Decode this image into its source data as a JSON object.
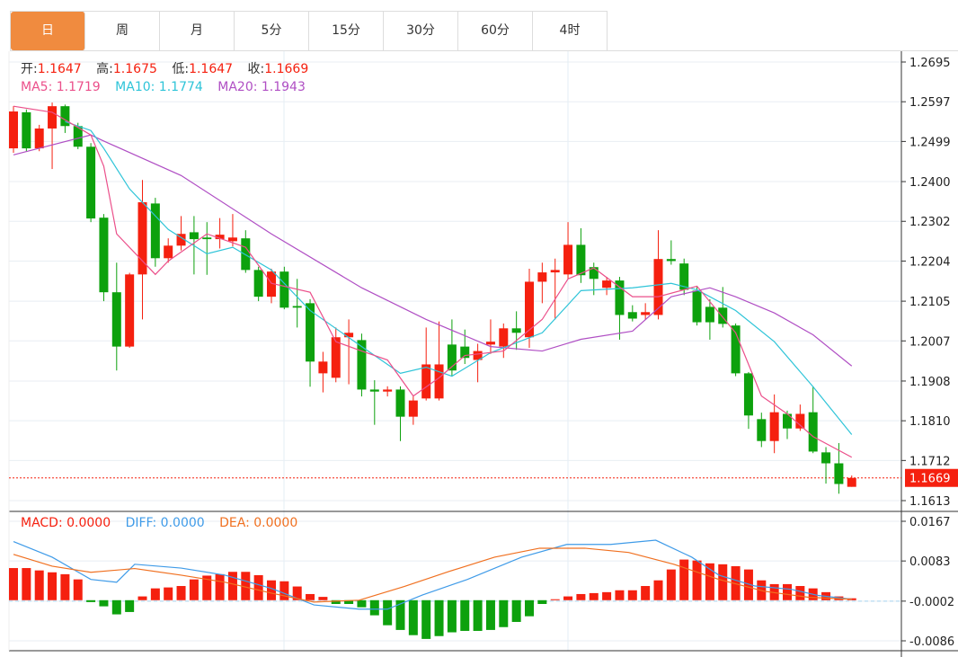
{
  "tabs": [
    {
      "label": "日",
      "active": true
    },
    {
      "label": "周"
    },
    {
      "label": "月"
    },
    {
      "label": "5分"
    },
    {
      "label": "15分"
    },
    {
      "label": "30分"
    },
    {
      "label": "60分"
    },
    {
      "label": "4时"
    }
  ],
  "ohlc_legend": {
    "open_label": "开:",
    "open": "1.1647",
    "high_label": "高:",
    "high": "1.1675",
    "low_label": "低:",
    "low": "1.1647",
    "close_label": "收:",
    "close": "1.1669"
  },
  "ma_legend": {
    "ma5": "MA5: 1.1719",
    "ma10": "MA10: 1.1774",
    "ma20": "MA20: 1.1943"
  },
  "macd_legend": {
    "macd": "MACD: 0.0000",
    "diff": "DIFF: 0.0000",
    "dea": "DEA: 0.0000"
  },
  "colors": {
    "up": "#f5200f",
    "down": "#0da10d",
    "ma5": "#eb4f8a",
    "ma10": "#2ec4d8",
    "ma20": "#b04fc4",
    "diff": "#3f9be8",
    "dea": "#f07020",
    "tab_active": "#f08b3f"
  },
  "chart_data": [
    {
      "type": "candlestick",
      "title": "",
      "y_ticks": [
        "1.2695",
        "1.2597",
        "1.2499",
        "1.2400",
        "1.2302",
        "1.2204",
        "1.2105",
        "1.2007",
        "1.1908",
        "1.1810",
        "1.1712",
        "1.1613"
      ],
      "ylim": [
        1.1613,
        1.2695
      ],
      "current_price": "1.1669",
      "ohlc": [
        [
          1.2482,
          1.2586,
          1.2471,
          1.2573
        ],
        [
          1.2571,
          1.2578,
          1.2475,
          1.2482
        ],
        [
          1.2482,
          1.254,
          1.2475,
          1.2531
        ],
        [
          1.2531,
          1.2595,
          1.2431,
          1.2586
        ],
        [
          1.2586,
          1.259,
          1.252,
          1.2537
        ],
        [
          1.2537,
          1.2545,
          1.248,
          1.2486
        ],
        [
          1.2486,
          1.2495,
          1.23,
          1.2309
        ],
        [
          1.2311,
          1.232,
          1.2105,
          1.2127
        ],
        [
          1.2127,
          1.22,
          1.1934,
          1.1993
        ],
        [
          1.1993,
          1.2175,
          1.199,
          1.2171
        ],
        [
          1.2171,
          1.2404,
          1.206,
          1.2349
        ],
        [
          1.2346,
          1.236,
          1.219,
          1.2211
        ],
        [
          1.2211,
          1.226,
          1.22,
          1.2242
        ],
        [
          1.2242,
          1.2315,
          1.223,
          1.2271
        ],
        [
          1.2275,
          1.2315,
          1.2171,
          1.2258
        ],
        [
          1.2262,
          1.23,
          1.217,
          1.2258
        ],
        [
          1.2258,
          1.231,
          1.2235,
          1.2269
        ],
        [
          1.2253,
          1.232,
          1.224,
          1.2262
        ],
        [
          1.226,
          1.228,
          1.2175,
          1.2182
        ],
        [
          1.2182,
          1.219,
          1.2105,
          1.2116
        ],
        [
          1.2116,
          1.2185,
          1.21,
          1.2178
        ],
        [
          1.2178,
          1.219,
          1.2085,
          1.2089
        ],
        [
          1.2093,
          1.216,
          1.204,
          1.2089
        ],
        [
          1.21,
          1.211,
          1.1894,
          1.1956
        ],
        [
          1.1927,
          1.198,
          1.188,
          1.1956
        ],
        [
          1.1916,
          1.204,
          1.1905,
          1.2016
        ],
        [
          1.2016,
          1.206,
          1.19,
          1.2027
        ],
        [
          1.2009,
          1.2025,
          1.187,
          1.1887
        ],
        [
          1.1887,
          1.191,
          1.18,
          1.1882
        ],
        [
          1.1882,
          1.1895,
          1.187,
          1.1887
        ],
        [
          1.1887,
          1.1895,
          1.176,
          1.182
        ],
        [
          1.182,
          1.187,
          1.18,
          1.186
        ],
        [
          1.1865,
          1.204,
          1.186,
          1.1949
        ],
        [
          1.1865,
          1.2055,
          1.186,
          1.1949
        ],
        [
          1.1998,
          1.206,
          1.192,
          1.1934
        ],
        [
          1.1993,
          1.2035,
          1.195,
          1.1965
        ],
        [
          1.196,
          1.2,
          1.1905,
          1.1982
        ],
        [
          1.1998,
          1.206,
          1.1975,
          1.2005
        ],
        [
          1.1993,
          1.205,
          1.1965,
          1.2038
        ],
        [
          1.2038,
          1.208,
          1.1985,
          1.2027
        ],
        [
          1.2016,
          1.2185,
          1.199,
          1.2153
        ],
        [
          1.2153,
          1.22,
          1.21,
          1.2176
        ],
        [
          1.2176,
          1.221,
          1.206,
          1.2182
        ],
        [
          1.2171,
          1.23,
          1.216,
          1.2244
        ],
        [
          1.2244,
          1.2285,
          1.215,
          1.2169
        ],
        [
          1.2189,
          1.22,
          1.212,
          1.216
        ],
        [
          1.2138,
          1.2165,
          1.212,
          1.2156
        ],
        [
          1.2156,
          1.2165,
          1.201,
          1.2071
        ],
        [
          1.2078,
          1.2095,
          1.2055,
          1.2062
        ],
        [
          1.2071,
          1.21,
          1.206,
          1.2078
        ],
        [
          1.2071,
          1.228,
          1.206,
          1.2209
        ],
        [
          1.2209,
          1.2255,
          1.2195,
          1.2204
        ],
        [
          1.2198,
          1.221,
          1.212,
          1.2133
        ],
        [
          1.2131,
          1.214,
          1.2045,
          1.2053
        ],
        [
          1.2091,
          1.211,
          1.201,
          1.2053
        ],
        [
          1.2089,
          1.214,
          1.204,
          1.2049
        ],
        [
          1.2045,
          1.205,
          1.192,
          1.1927
        ],
        [
          1.1927,
          1.193,
          1.179,
          1.1823
        ],
        [
          1.1814,
          1.183,
          1.1745,
          1.176
        ],
        [
          1.176,
          1.1875,
          1.173,
          1.1831
        ],
        [
          1.1827,
          1.1835,
          1.1765,
          1.1791
        ],
        [
          1.1791,
          1.185,
          1.1785,
          1.1827
        ],
        [
          1.1831,
          1.1895,
          1.173,
          1.1734
        ],
        [
          1.1732,
          1.1745,
          1.1655,
          1.1705
        ],
        [
          1.1705,
          1.1755,
          1.163,
          1.1654
        ],
        [
          1.1647,
          1.1675,
          1.1647,
          1.1669
        ]
      ],
      "ma5": [
        [
          0,
          1.2586
        ],
        [
          3,
          1.2571
        ],
        [
          6,
          1.2515
        ],
        [
          7,
          1.2438
        ],
        [
          8,
          1.2271
        ],
        [
          11,
          1.2171
        ],
        [
          12,
          1.2204
        ],
        [
          15,
          1.2271
        ],
        [
          18,
          1.2238
        ],
        [
          20,
          1.2149
        ],
        [
          23,
          1.2127
        ],
        [
          25,
          1.2005
        ],
        [
          27,
          1.1982
        ],
        [
          29,
          1.196
        ],
        [
          31,
          1.1871
        ],
        [
          33,
          1.1916
        ],
        [
          35,
          1.1971
        ],
        [
          38,
          1.1982
        ],
        [
          41,
          1.206
        ],
        [
          43,
          1.216
        ],
        [
          45,
          1.2187
        ],
        [
          48,
          1.2116
        ],
        [
          50,
          1.2116
        ],
        [
          53,
          1.2142
        ],
        [
          56,
          1.2027
        ],
        [
          58,
          1.1871
        ],
        [
          60,
          1.1827
        ],
        [
          62,
          1.1771
        ],
        [
          65,
          1.172
        ]
      ],
      "ma10": [
        [
          4,
          1.2548
        ],
        [
          6,
          1.2526
        ],
        [
          7,
          1.2482
        ],
        [
          9,
          1.2382
        ],
        [
          12,
          1.2282
        ],
        [
          15,
          1.2222
        ],
        [
          17,
          1.2238
        ],
        [
          20,
          1.2182
        ],
        [
          23,
          1.2082
        ],
        [
          27,
          1.1993
        ],
        [
          30,
          1.1927
        ],
        [
          32,
          1.1942
        ],
        [
          34,
          1.192
        ],
        [
          37,
          1.1978
        ],
        [
          41,
          1.2027
        ],
        [
          44,
          1.2131
        ],
        [
          48,
          1.2138
        ],
        [
          51,
          1.2149
        ],
        [
          53,
          1.2133
        ],
        [
          56,
          1.2082
        ],
        [
          59,
          1.2005
        ],
        [
          62,
          1.1894
        ],
        [
          65,
          1.1776
        ]
      ],
      "ma20": [
        [
          0,
          1.2466
        ],
        [
          6,
          1.2515
        ],
        [
          7,
          1.25
        ],
        [
          13,
          1.2415
        ],
        [
          20,
          1.2271
        ],
        [
          27,
          1.2138
        ],
        [
          32,
          1.206
        ],
        [
          37,
          1.1993
        ],
        [
          41,
          1.1982
        ],
        [
          44,
          1.2011
        ],
        [
          48,
          1.2031
        ],
        [
          51,
          1.2116
        ],
        [
          54,
          1.2138
        ],
        [
          56,
          1.2116
        ],
        [
          59,
          1.2076
        ],
        [
          62,
          1.2022
        ],
        [
          65,
          1.1945
        ]
      ]
    },
    {
      "type": "bar+line",
      "title": "MACD",
      "y_ticks": [
        "0.0167",
        "0.0083",
        "-0.0002",
        "-0.0086"
      ],
      "ylim": [
        -0.0086,
        0.0167
      ],
      "macd_hist_x1000": [
        6.8,
        6.8,
        6.3,
        5.9,
        5.5,
        4.4,
        -0.4,
        -1.3,
        -3.0,
        -2.5,
        0.8,
        2.5,
        2.7,
        3.0,
        4.4,
        5.2,
        5.5,
        6.0,
        6.0,
        5.3,
        4.2,
        4.0,
        2.9,
        1.3,
        0.7,
        -0.8,
        -0.8,
        -1.5,
        -3.2,
        -5.3,
        -6.3,
        -7.4,
        -8.2,
        -7.6,
        -6.8,
        -6.5,
        -6.5,
        -6.3,
        -5.7,
        -4.6,
        -3.4,
        -0.8,
        0.2,
        0.8,
        1.3,
        1.5,
        1.7,
        2.1,
        2.1,
        3.0,
        4.2,
        6.5,
        8.6,
        8.4,
        7.8,
        7.6,
        7.2,
        6.5,
        4.2,
        3.4,
        3.4,
        3.0,
        2.5,
        1.7,
        0.8,
        0.4
      ],
      "diff_x1000": [
        [
          0,
          12.4
        ],
        [
          3,
          9.1
        ],
        [
          6,
          4.4
        ],
        [
          8,
          3.8
        ],
        [
          9.4,
          7.6
        ],
        [
          13,
          6.8
        ],
        [
          16.4,
          5.3
        ],
        [
          20,
          2.5
        ],
        [
          23.3,
          -1.0
        ],
        [
          26.8,
          -1.9
        ],
        [
          29,
          -1.9
        ],
        [
          31.7,
          1.1
        ],
        [
          35.2,
          4.4
        ],
        [
          39.4,
          9.1
        ],
        [
          42.9,
          11.8
        ],
        [
          46.3,
          11.8
        ],
        [
          49.8,
          12.7
        ],
        [
          52.6,
          9.1
        ],
        [
          54.7,
          5.3
        ],
        [
          57.5,
          3.0
        ],
        [
          60.3,
          2.3
        ],
        [
          62.4,
          1.0
        ],
        [
          65,
          0.2
        ]
      ],
      "dea_x1000": [
        [
          0,
          9.7
        ],
        [
          3,
          7.2
        ],
        [
          6,
          5.9
        ],
        [
          9.4,
          6.7
        ],
        [
          13,
          5.3
        ],
        [
          16.4,
          3.8
        ],
        [
          20,
          1.5
        ],
        [
          23.3,
          -0.4
        ],
        [
          26.8,
          0
        ],
        [
          30.3,
          2.9
        ],
        [
          33.8,
          6.1
        ],
        [
          37.3,
          9.1
        ],
        [
          40.8,
          11.0
        ],
        [
          44.3,
          11.0
        ],
        [
          47.7,
          10.1
        ],
        [
          51.2,
          7.6
        ],
        [
          54.7,
          4.4
        ],
        [
          58.2,
          1.9
        ],
        [
          61.7,
          0.6
        ],
        [
          65,
          0.2
        ]
      ]
    }
  ]
}
